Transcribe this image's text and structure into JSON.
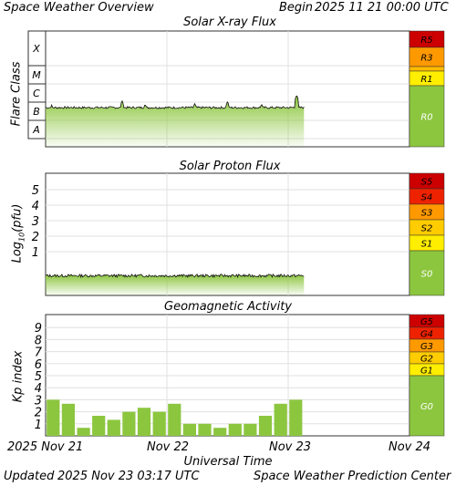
{
  "header": {
    "title": "Space Weather Overview",
    "begin_label": "Begin",
    "begin_date": "2025 11 21 00:00 UTC"
  },
  "footer": {
    "updated_label": "Updated",
    "updated_date": "2025 Nov 23 03:17 UTC",
    "credit": "Space Weather Prediction Center"
  },
  "xaxis": {
    "title": "Universal Time",
    "ticks": [
      "2025 Nov 21",
      "Nov 22",
      "Nov 23",
      "Nov 24"
    ]
  },
  "colors": {
    "green": "#8cc63f",
    "frame": "#333333",
    "grid": "#e0e0e0",
    "R5": "#cc0000",
    "R3": "#ff9900",
    "R1": "#ffee00",
    "S5": "#cc0000",
    "S4": "#ee2200",
    "S3": "#ff9900",
    "S2": "#ffcc00",
    "S1": "#ffee00",
    "G5": "#cc0000",
    "G4": "#ee2200",
    "G3": "#ff9900",
    "G2": "#ffcc00",
    "G1": "#ffee00"
  },
  "chart_data": [
    {
      "type": "area",
      "title": "Solar X-ray Flux",
      "ylabel": "Flare Class",
      "yclasses": [
        "X",
        "M",
        "C",
        "B",
        "A"
      ],
      "scale_labels": [
        "R5",
        "R3",
        "R1",
        "R0"
      ],
      "x_range_days": [
        0,
        3
      ],
      "log_flux_baseline": -6.3,
      "log_flux_spikes": [
        {
          "t": 0.05,
          "v": -6.15
        },
        {
          "t": 0.63,
          "v": -5.9
        },
        {
          "t": 0.82,
          "v": -6.1
        },
        {
          "t": 1.23,
          "v": -6.05
        },
        {
          "t": 1.5,
          "v": -5.95
        },
        {
          "t": 1.78,
          "v": -6.1
        },
        {
          "t": 2.07,
          "v": -5.6
        },
        {
          "t": 2.2,
          "v": -6.1
        }
      ],
      "data_end_day": 2.13
    },
    {
      "type": "area",
      "title": "Solar Proton Flux",
      "ylabel": "Log10(pfu)",
      "yticks": [
        "5",
        "4",
        "3",
        "2",
        "1"
      ],
      "scale_labels": [
        "S5",
        "S4",
        "S3",
        "S2",
        "S1",
        "S0"
      ],
      "log_pfu_baseline": -0.55,
      "data_end_day": 2.13
    },
    {
      "type": "bar",
      "title": "Geomagnetic Activity",
      "ylabel": "Kp index",
      "yticks": [
        "9",
        "8",
        "7",
        "6",
        "5",
        "4",
        "3",
        "2",
        "1"
      ],
      "ylim": [
        0,
        10
      ],
      "scale_labels": [
        "G5",
        "G4",
        "G3",
        "G2",
        "G1",
        "G0"
      ],
      "bar_hours": 3,
      "values": [
        3.0,
        2.67,
        0.67,
        1.67,
        1.33,
        2.0,
        2.33,
        2.0,
        2.67,
        1.0,
        1.0,
        0.67,
        1.0,
        1.0,
        1.67,
        2.67,
        3.0
      ]
    }
  ]
}
